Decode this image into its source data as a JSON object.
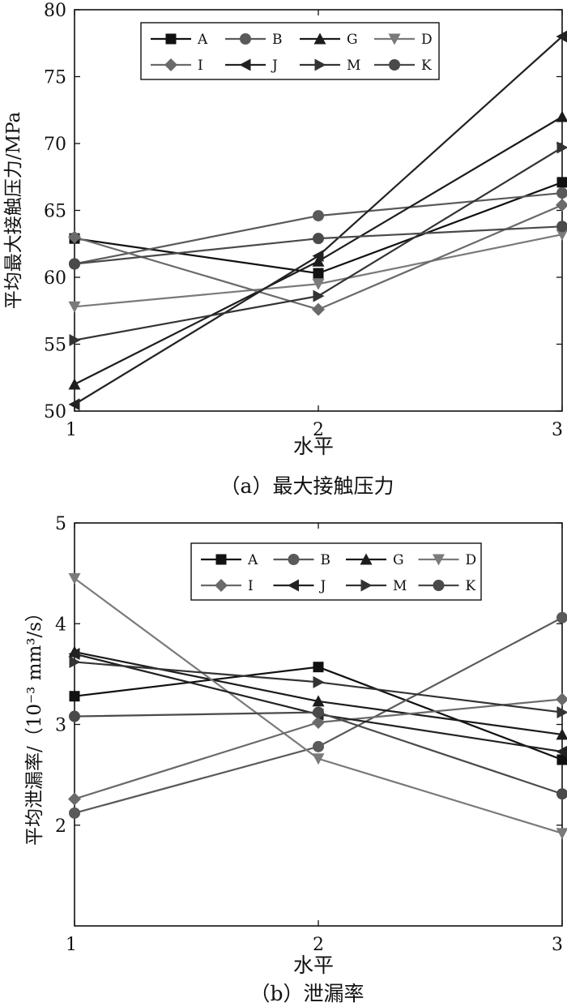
{
  "chart_data": [
    {
      "type": "line",
      "caption": "（a）最大接触压力",
      "xlabel": "水平",
      "ylabel": "平均最大接触压力/MPa",
      "x": [
        1,
        2,
        3
      ],
      "xlim": [
        1,
        3
      ],
      "ylim": [
        50,
        80
      ],
      "xticks": [
        "1",
        "2",
        "3"
      ],
      "yticks": [
        "50",
        "55",
        "60",
        "65",
        "70",
        "75",
        "80"
      ],
      "grid": false,
      "legend_position": "top-center",
      "series": [
        {
          "name": "A",
          "marker": "square",
          "color": "#111111",
          "values": [
            62.9,
            60.3,
            67.1
          ]
        },
        {
          "name": "B",
          "marker": "circle",
          "color": "#5a5a5a",
          "values": [
            61.0,
            64.6,
            66.3
          ]
        },
        {
          "name": "G",
          "marker": "triangle-up",
          "color": "#1c1c1c",
          "values": [
            52.0,
            61.2,
            72.0
          ]
        },
        {
          "name": "D",
          "marker": "triangle-down",
          "color": "#7a7a7a",
          "values": [
            57.8,
            59.5,
            63.2
          ]
        },
        {
          "name": "I",
          "marker": "diamond",
          "color": "#6a6a6a",
          "values": [
            63.0,
            57.6,
            65.4
          ]
        },
        {
          "name": "J",
          "marker": "triangle-left",
          "color": "#222222",
          "values": [
            50.5,
            61.6,
            78.0
          ]
        },
        {
          "name": "M",
          "marker": "triangle-right",
          "color": "#333333",
          "values": [
            55.3,
            58.6,
            69.7
          ]
        },
        {
          "name": "K",
          "marker": "circle",
          "color": "#4a4a4a",
          "values": [
            61.0,
            62.9,
            63.8
          ]
        }
      ]
    },
    {
      "type": "line",
      "caption": "（b）泄漏率",
      "xlabel": "水平",
      "ylabel": "平均泄漏率/（10⁻³ mm³/s）",
      "x": [
        1,
        2,
        3
      ],
      "xlim": [
        1,
        3
      ],
      "ylim": [
        1,
        5
      ],
      "xticks": [
        "1",
        "2",
        "3"
      ],
      "yticks": [
        "2",
        "3",
        "4",
        "5"
      ],
      "grid": false,
      "legend_position": "top-center",
      "series": [
        {
          "name": "A",
          "marker": "square",
          "color": "#111111",
          "values": [
            3.28,
            3.57,
            2.65
          ]
        },
        {
          "name": "B",
          "marker": "circle",
          "color": "#5a5a5a",
          "values": [
            2.12,
            2.78,
            4.06
          ]
        },
        {
          "name": "G",
          "marker": "triangle-up",
          "color": "#1c1c1c",
          "values": [
            3.72,
            3.23,
            2.9
          ]
        },
        {
          "name": "D",
          "marker": "triangle-down",
          "color": "#7a7a7a",
          "values": [
            4.45,
            2.66,
            1.92
          ]
        },
        {
          "name": "I",
          "marker": "diamond",
          "color": "#6a6a6a",
          "values": [
            2.26,
            3.02,
            3.25
          ]
        },
        {
          "name": "J",
          "marker": "triangle-left",
          "color": "#222222",
          "values": [
            3.7,
            3.1,
            2.73
          ]
        },
        {
          "name": "M",
          "marker": "triangle-right",
          "color": "#333333",
          "values": [
            3.62,
            3.42,
            3.12
          ]
        },
        {
          "name": "K",
          "marker": "circle",
          "color": "#4a4a4a",
          "values": [
            3.08,
            3.12,
            2.31
          ]
        }
      ]
    }
  ]
}
